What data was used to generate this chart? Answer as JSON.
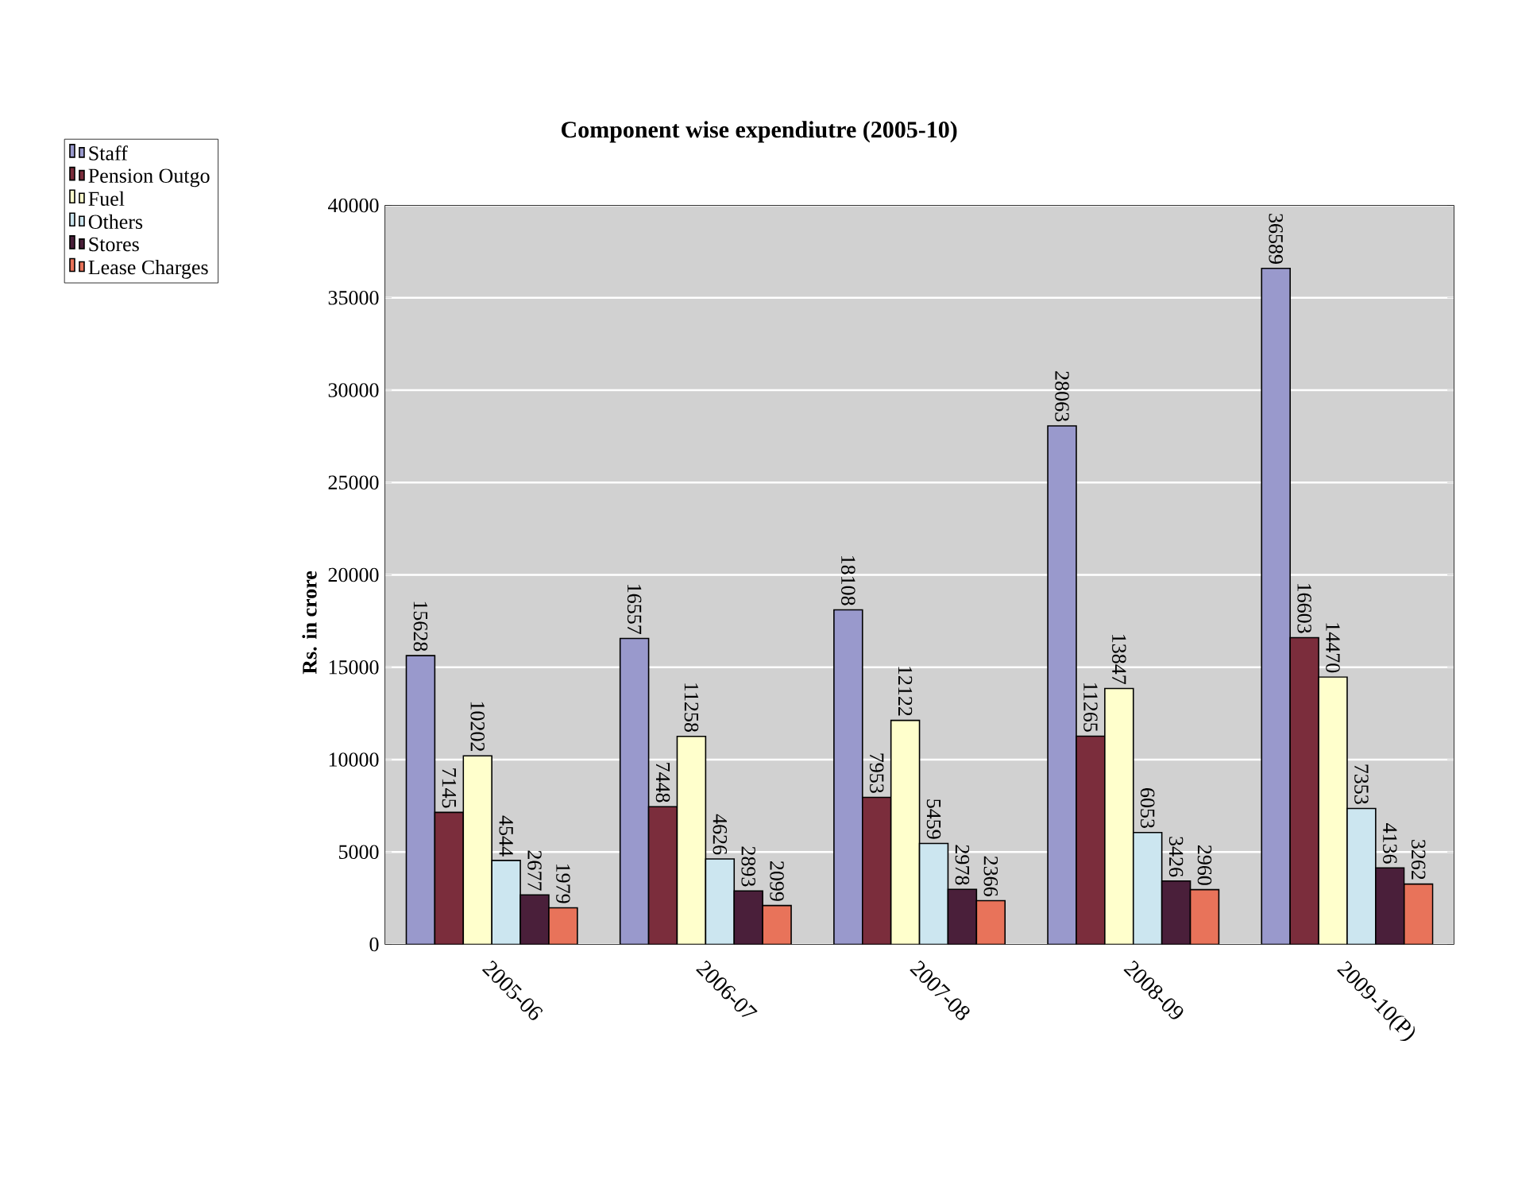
{
  "chart_data": {
    "type": "bar",
    "title": "Component wise expendiutre (2005-10)",
    "ylabel": "Rs. in crore",
    "categories": [
      "2005-06",
      "2006-07",
      "2007-08",
      "2008-09",
      "2009-10(P)"
    ],
    "series": [
      {
        "name": "Staff",
        "color": "#9999cc",
        "values": [
          15628,
          16557,
          18108,
          28063,
          36589
        ]
      },
      {
        "name": "Pension Outgo",
        "color": "#7b2d3c",
        "values": [
          7145,
          7448,
          7953,
          11265,
          16603
        ]
      },
      {
        "name": "Fuel",
        "color": "#ffffcc",
        "values": [
          10202,
          11258,
          12122,
          13847,
          14470
        ]
      },
      {
        "name": "Others",
        "color": "#cce6f0",
        "values": [
          4544,
          4626,
          5459,
          6053,
          7353
        ]
      },
      {
        "name": "Stores",
        "color": "#4a1f3a",
        "values": [
          2677,
          2893,
          2978,
          3426,
          4136
        ]
      },
      {
        "name": "Lease Charges",
        "color": "#e8735a",
        "values": [
          1979,
          2099,
          2366,
          2960,
          3262
        ]
      }
    ],
    "ylim": [
      0,
      40000
    ],
    "yticks": [
      0,
      5000,
      10000,
      15000,
      20000,
      25000,
      30000,
      35000,
      40000
    ],
    "grid": "y",
    "legend": "top left",
    "data_labels": true
  }
}
